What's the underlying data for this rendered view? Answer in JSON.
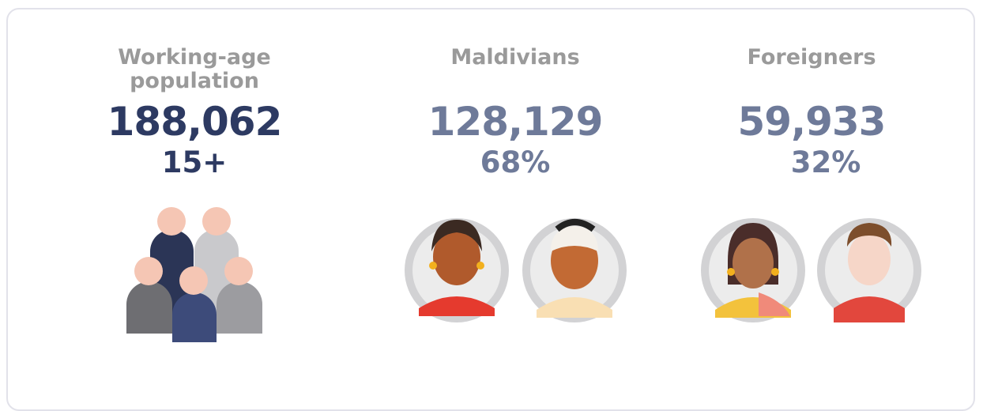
{
  "columns": [
    {
      "label": "Working-age population",
      "number": "188,062",
      "detail": "15+"
    },
    {
      "label": "Maldivians",
      "number": "128,129",
      "detail": "68%"
    },
    {
      "label": "Foreigners",
      "number": "59,933",
      "detail": "32%"
    }
  ]
}
